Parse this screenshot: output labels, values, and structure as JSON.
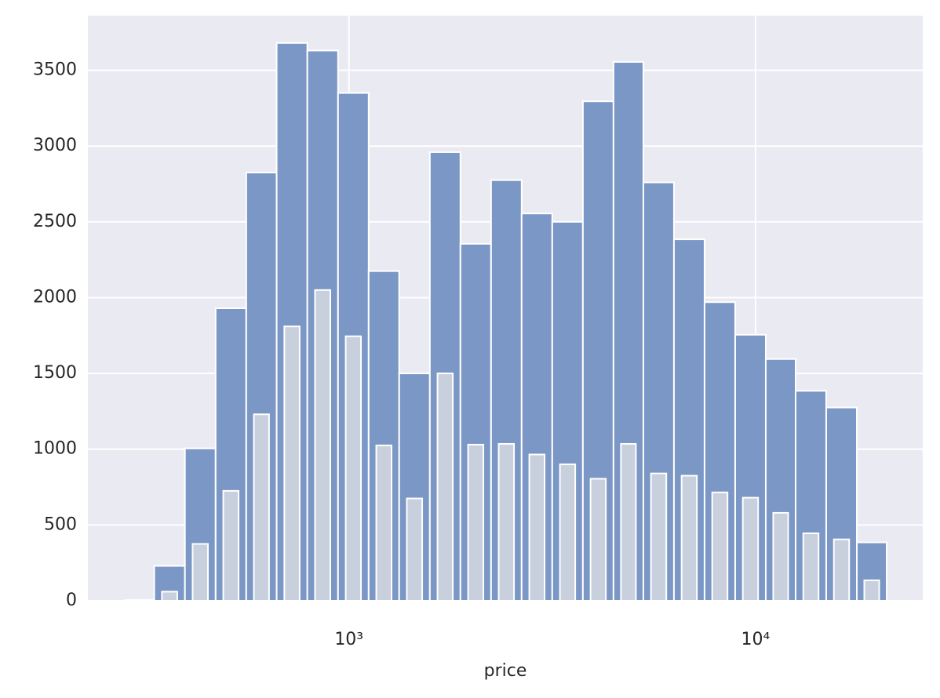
{
  "chart_data": {
    "type": "histogram",
    "xlabel": "price",
    "bins": [
      282,
      332,
      395,
      470,
      559,
      664,
      790,
      940,
      1118,
      1329,
      1581,
      1880,
      2236,
      2659,
      3162,
      3761,
      4473,
      5297,
      6299,
      7491,
      8909,
      10595,
      12546,
      14918,
      17742,
      21010
    ],
    "series": [
      {
        "color": "#7b97c5",
        "values": [
          5,
          230,
          1005,
          1930,
          2825,
          3680,
          3630,
          3350,
          2175,
          1500,
          2960,
          2355,
          2775,
          2555,
          2500,
          3295,
          3555,
          2760,
          2385,
          1970,
          1755,
          1595,
          1385,
          1275,
          385
        ]
      },
      {
        "color": "#c8cfdd",
        "values": [
          0,
          60,
          375,
          725,
          1230,
          1810,
          2050,
          1745,
          1025,
          675,
          1500,
          1030,
          1035,
          965,
          900,
          805,
          1035,
          840,
          825,
          715,
          680,
          580,
          445,
          405,
          135
        ]
      }
    ],
    "xscale": "log",
    "xlim": [
      228,
      25770
    ],
    "xticks": [
      {
        "value": 1000,
        "label": "10³"
      },
      {
        "value": 10000,
        "label": "10⁴"
      }
    ],
    "ylim": [
      0,
      3860
    ],
    "yticks": [
      0,
      500,
      1000,
      1500,
      2000,
      2500,
      3000,
      3500
    ],
    "grid": true
  }
}
